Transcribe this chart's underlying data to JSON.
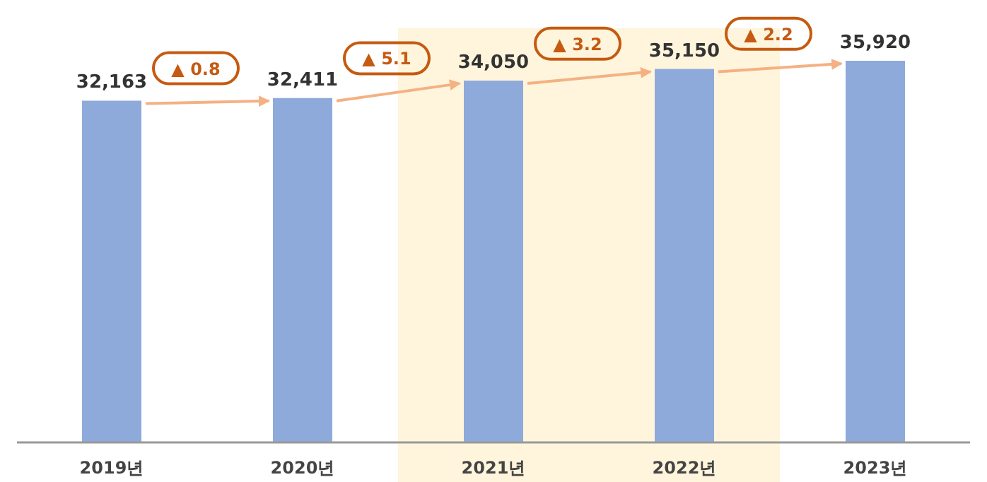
{
  "chart_data": {
    "type": "bar",
    "categories": [
      "2019년",
      "2020년",
      "2021년",
      "2022년",
      "2023년"
    ],
    "values": [
      32163,
      32411,
      34050,
      35150,
      35920
    ],
    "value_labels": [
      "32,163",
      "32,411",
      "34,050",
      "35,150",
      "35,920"
    ],
    "color": "#8eaadb",
    "annotations": [
      "▲ 0.8",
      "▲ 5.1",
      "▲ 3.2",
      "▲ 2.2"
    ]
  }
}
